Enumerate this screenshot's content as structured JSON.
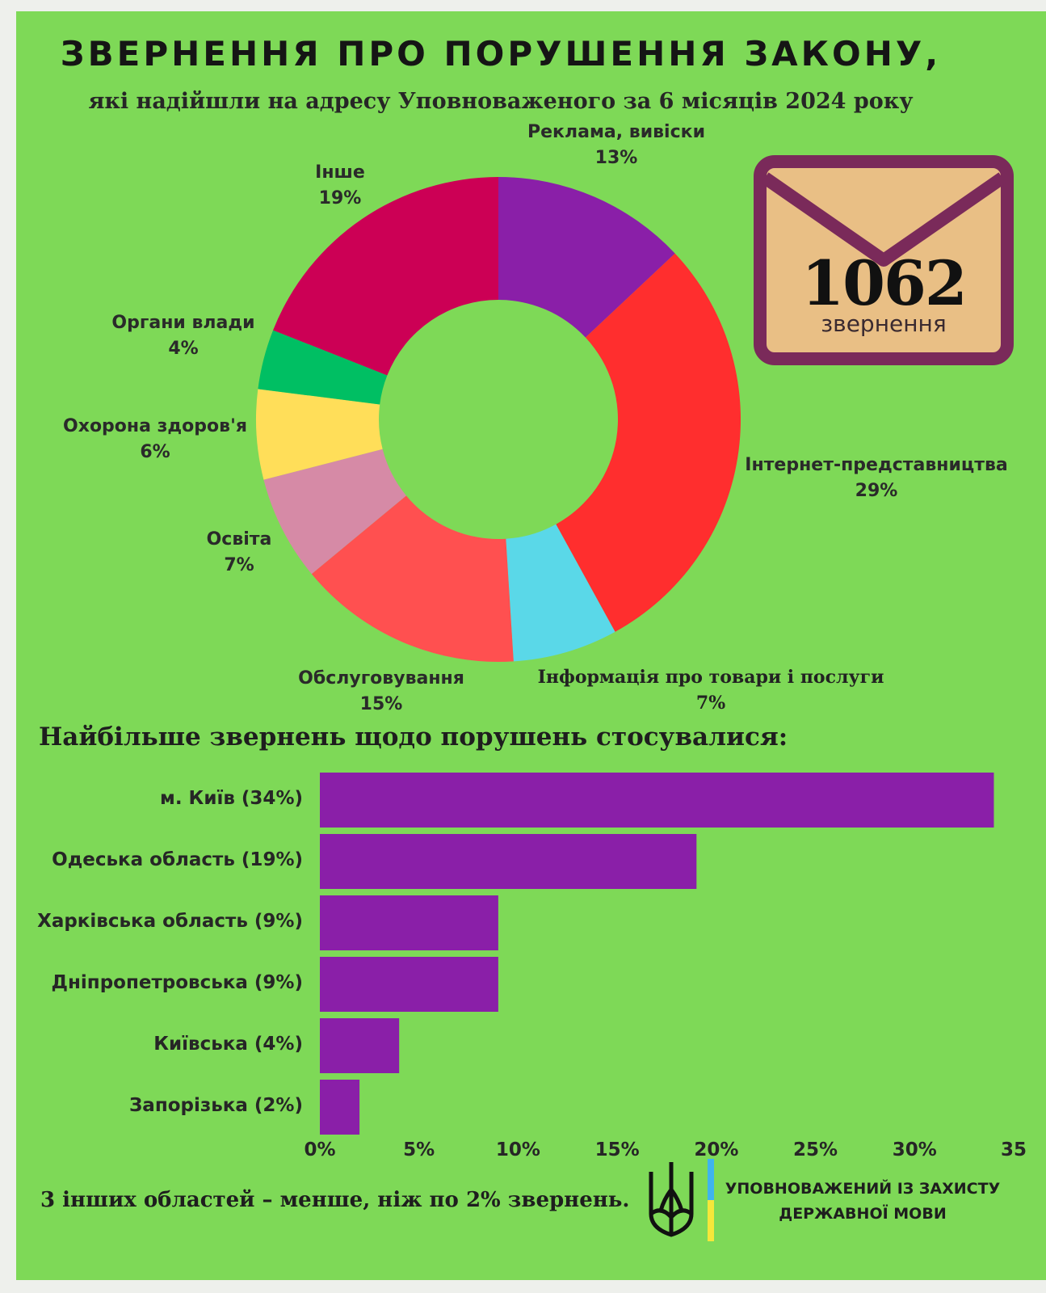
{
  "header": {
    "title": "ЗВЕРНЕННЯ ПРО ПОРУШЕННЯ ЗАКОНУ,",
    "subtitle": "які надійшли на адресу Уповноваженого за 6 місяців 2024 року"
  },
  "envelope": {
    "count": "1062",
    "label": "звернення",
    "icon": "envelope-icon"
  },
  "colors": {
    "background": "#7ed957",
    "bar": "#8a1fa8",
    "envelope_fill": "#e9bf85",
    "envelope_border": "#7a2a5a"
  },
  "chart_data": [
    {
      "type": "pie",
      "variant": "donut",
      "slices": [
        {
          "label": "Реклама, вивіски",
          "value": 13,
          "value_label": "13%",
          "color": "#8a1fa8"
        },
        {
          "label": "Інтернет-представництва",
          "value": 29,
          "value_label": "29%",
          "color": "#ff2e2e"
        },
        {
          "label": "Інформація про товари і послуги",
          "value": 7,
          "value_label": "7%",
          "color": "#5ad8e8"
        },
        {
          "label": "Обслуговування",
          "value": 15,
          "value_label": "15%",
          "color": "#ff5050"
        },
        {
          "label": "Освіта",
          "value": 7,
          "value_label": "7%",
          "color": "#d68aa6"
        },
        {
          "label": "Охорона здоров'я",
          "value": 6,
          "value_label": "6%",
          "color": "#ffde59"
        },
        {
          "label": "Органи влади",
          "value": 4,
          "value_label": "4%",
          "color": "#00bf63"
        },
        {
          "label": "Інше",
          "value": 19,
          "value_label": "19%",
          "color": "#cc0055"
        }
      ]
    },
    {
      "type": "bar",
      "orientation": "horizontal",
      "title": "Найбільше звернень щодо порушень стосувалися:",
      "categories": [
        "м. Київ (34%)",
        "Одеська область (19%)",
        "Харківська область (9%)",
        "Дніпропетровська (9%)",
        "Київська (4%)",
        "Запорізька (2%)"
      ],
      "values": [
        34,
        19,
        9,
        9,
        4,
        2
      ],
      "xlim": [
        0,
        35
      ],
      "ticks": [
        "0%",
        "5%",
        "10%",
        "15%",
        "20%",
        "25%",
        "30%",
        "35"
      ],
      "grid": false
    }
  ],
  "footnote": "3 інших областей – менше, ніж по 2% звернень.",
  "footer": {
    "org_line1": "УПОВНОВАЖЕНИЙ ІЗ ЗАХИСТУ",
    "org_line2": "ДЕРЖАВНОЇ МОВИ",
    "emblem": "trident-icon"
  }
}
